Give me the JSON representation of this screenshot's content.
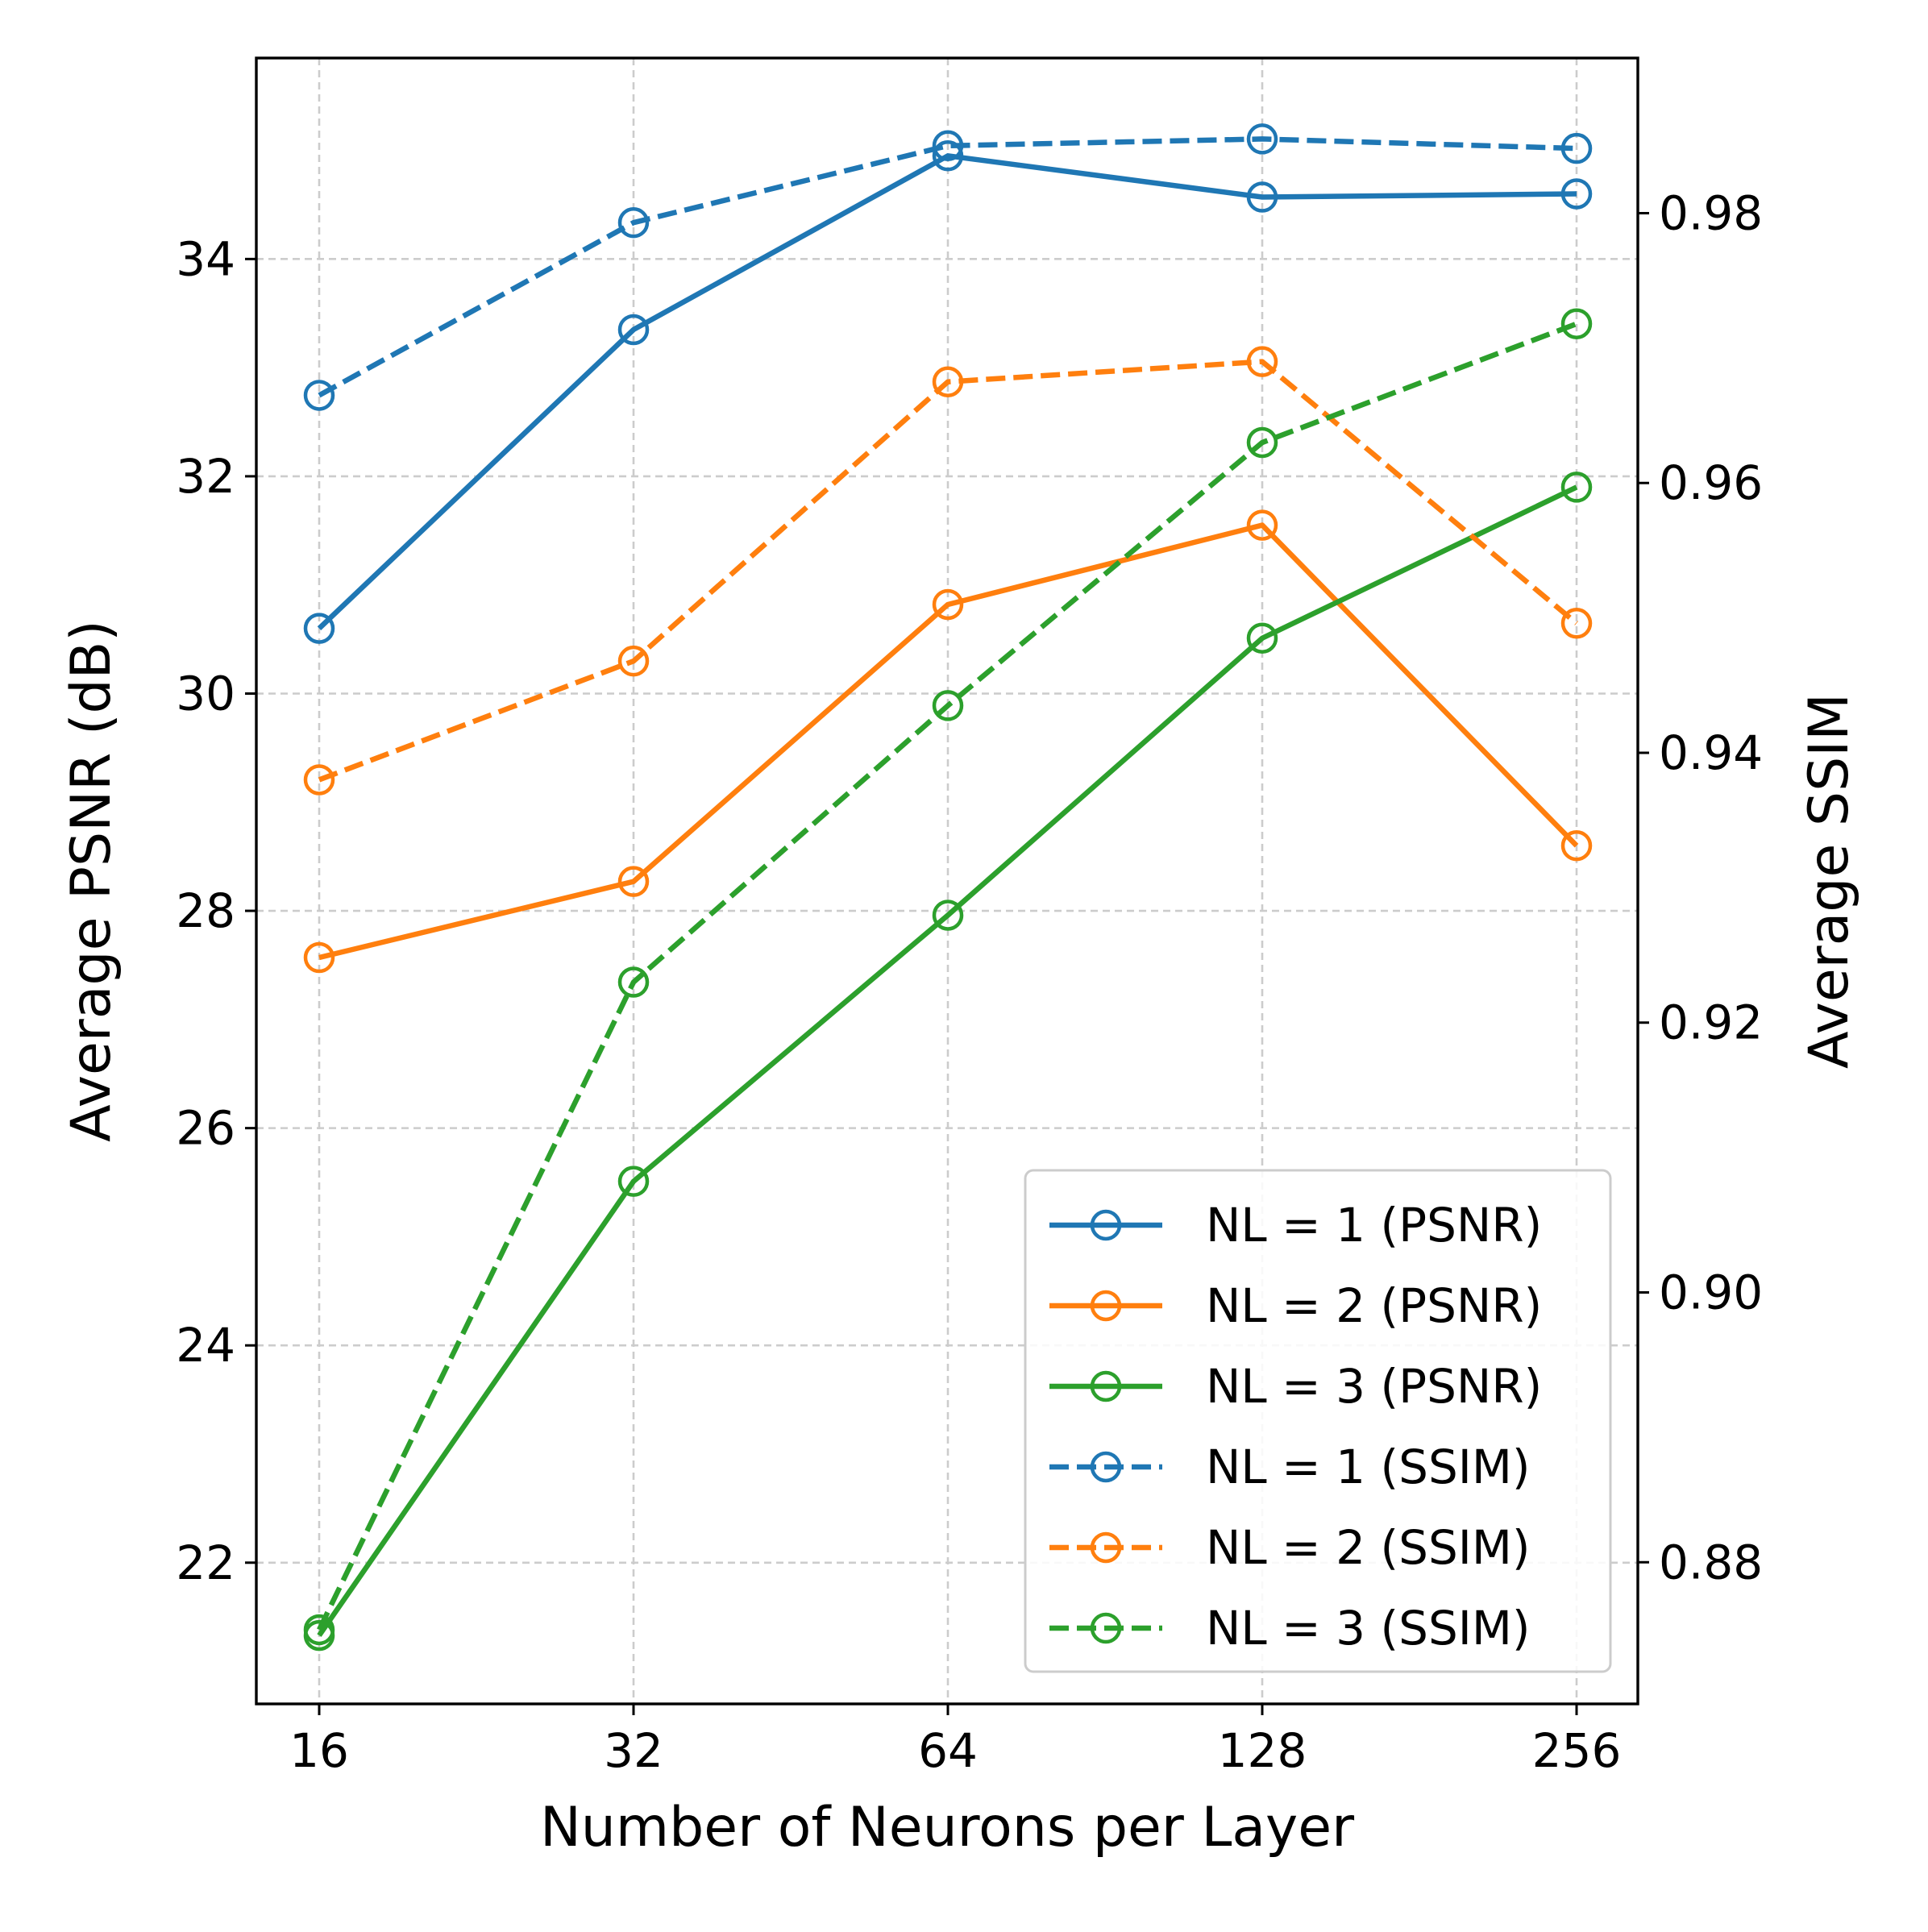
{
  "chart_data": {
    "type": "line",
    "title": "",
    "xlabel": "Number of Neurons per Layer",
    "ylabel": "Average PSNR (dB)",
    "y2label": "Average SSIM",
    "categories": [
      "16",
      "32",
      "64",
      "128",
      "256"
    ],
    "ylim": [
      20.7,
      35.85
    ],
    "y2lim": [
      0.8695,
      0.9915
    ],
    "yticks": [
      "22",
      "24",
      "26",
      "28",
      "30",
      "32",
      "34"
    ],
    "y2ticks": [
      "0.88",
      "0.90",
      "0.92",
      "0.94",
      "0.96",
      "0.98"
    ],
    "grid": true,
    "legend_position": "lower-right",
    "series": [
      {
        "name": "NL = 1 (PSNR)",
        "axis": "left",
        "style": "solid",
        "color": "#1f77b4",
        "values": [
          30.6,
          33.35,
          34.95,
          34.57,
          34.6
        ]
      },
      {
        "name": "NL = 2 (PSNR)",
        "axis": "left",
        "style": "solid",
        "color": "#ff7f0e",
        "values": [
          27.57,
          28.27,
          30.82,
          31.55,
          28.6
        ]
      },
      {
        "name": "NL = 3 (PSNR)",
        "axis": "left",
        "style": "solid",
        "color": "#2ca02c",
        "values": [
          21.33,
          25.51,
          27.96,
          30.51,
          31.9
        ]
      },
      {
        "name": "NL = 1 (SSIM)",
        "axis": "right",
        "style": "dashed",
        "color": "#1f77b4",
        "values": [
          0.9665,
          0.9793,
          0.985,
          0.9855,
          0.9848
        ]
      },
      {
        "name": "NL = 2 (SSIM)",
        "axis": "right",
        "style": "dashed",
        "color": "#ff7f0e",
        "values": [
          0.938,
          0.9468,
          0.9675,
          0.969,
          0.9496
        ]
      },
      {
        "name": "NL = 3 (SSIM)",
        "axis": "right",
        "style": "dashed",
        "color": "#2ca02c",
        "values": [
          0.875,
          0.923,
          0.9435,
          0.963,
          0.9718
        ]
      }
    ]
  }
}
